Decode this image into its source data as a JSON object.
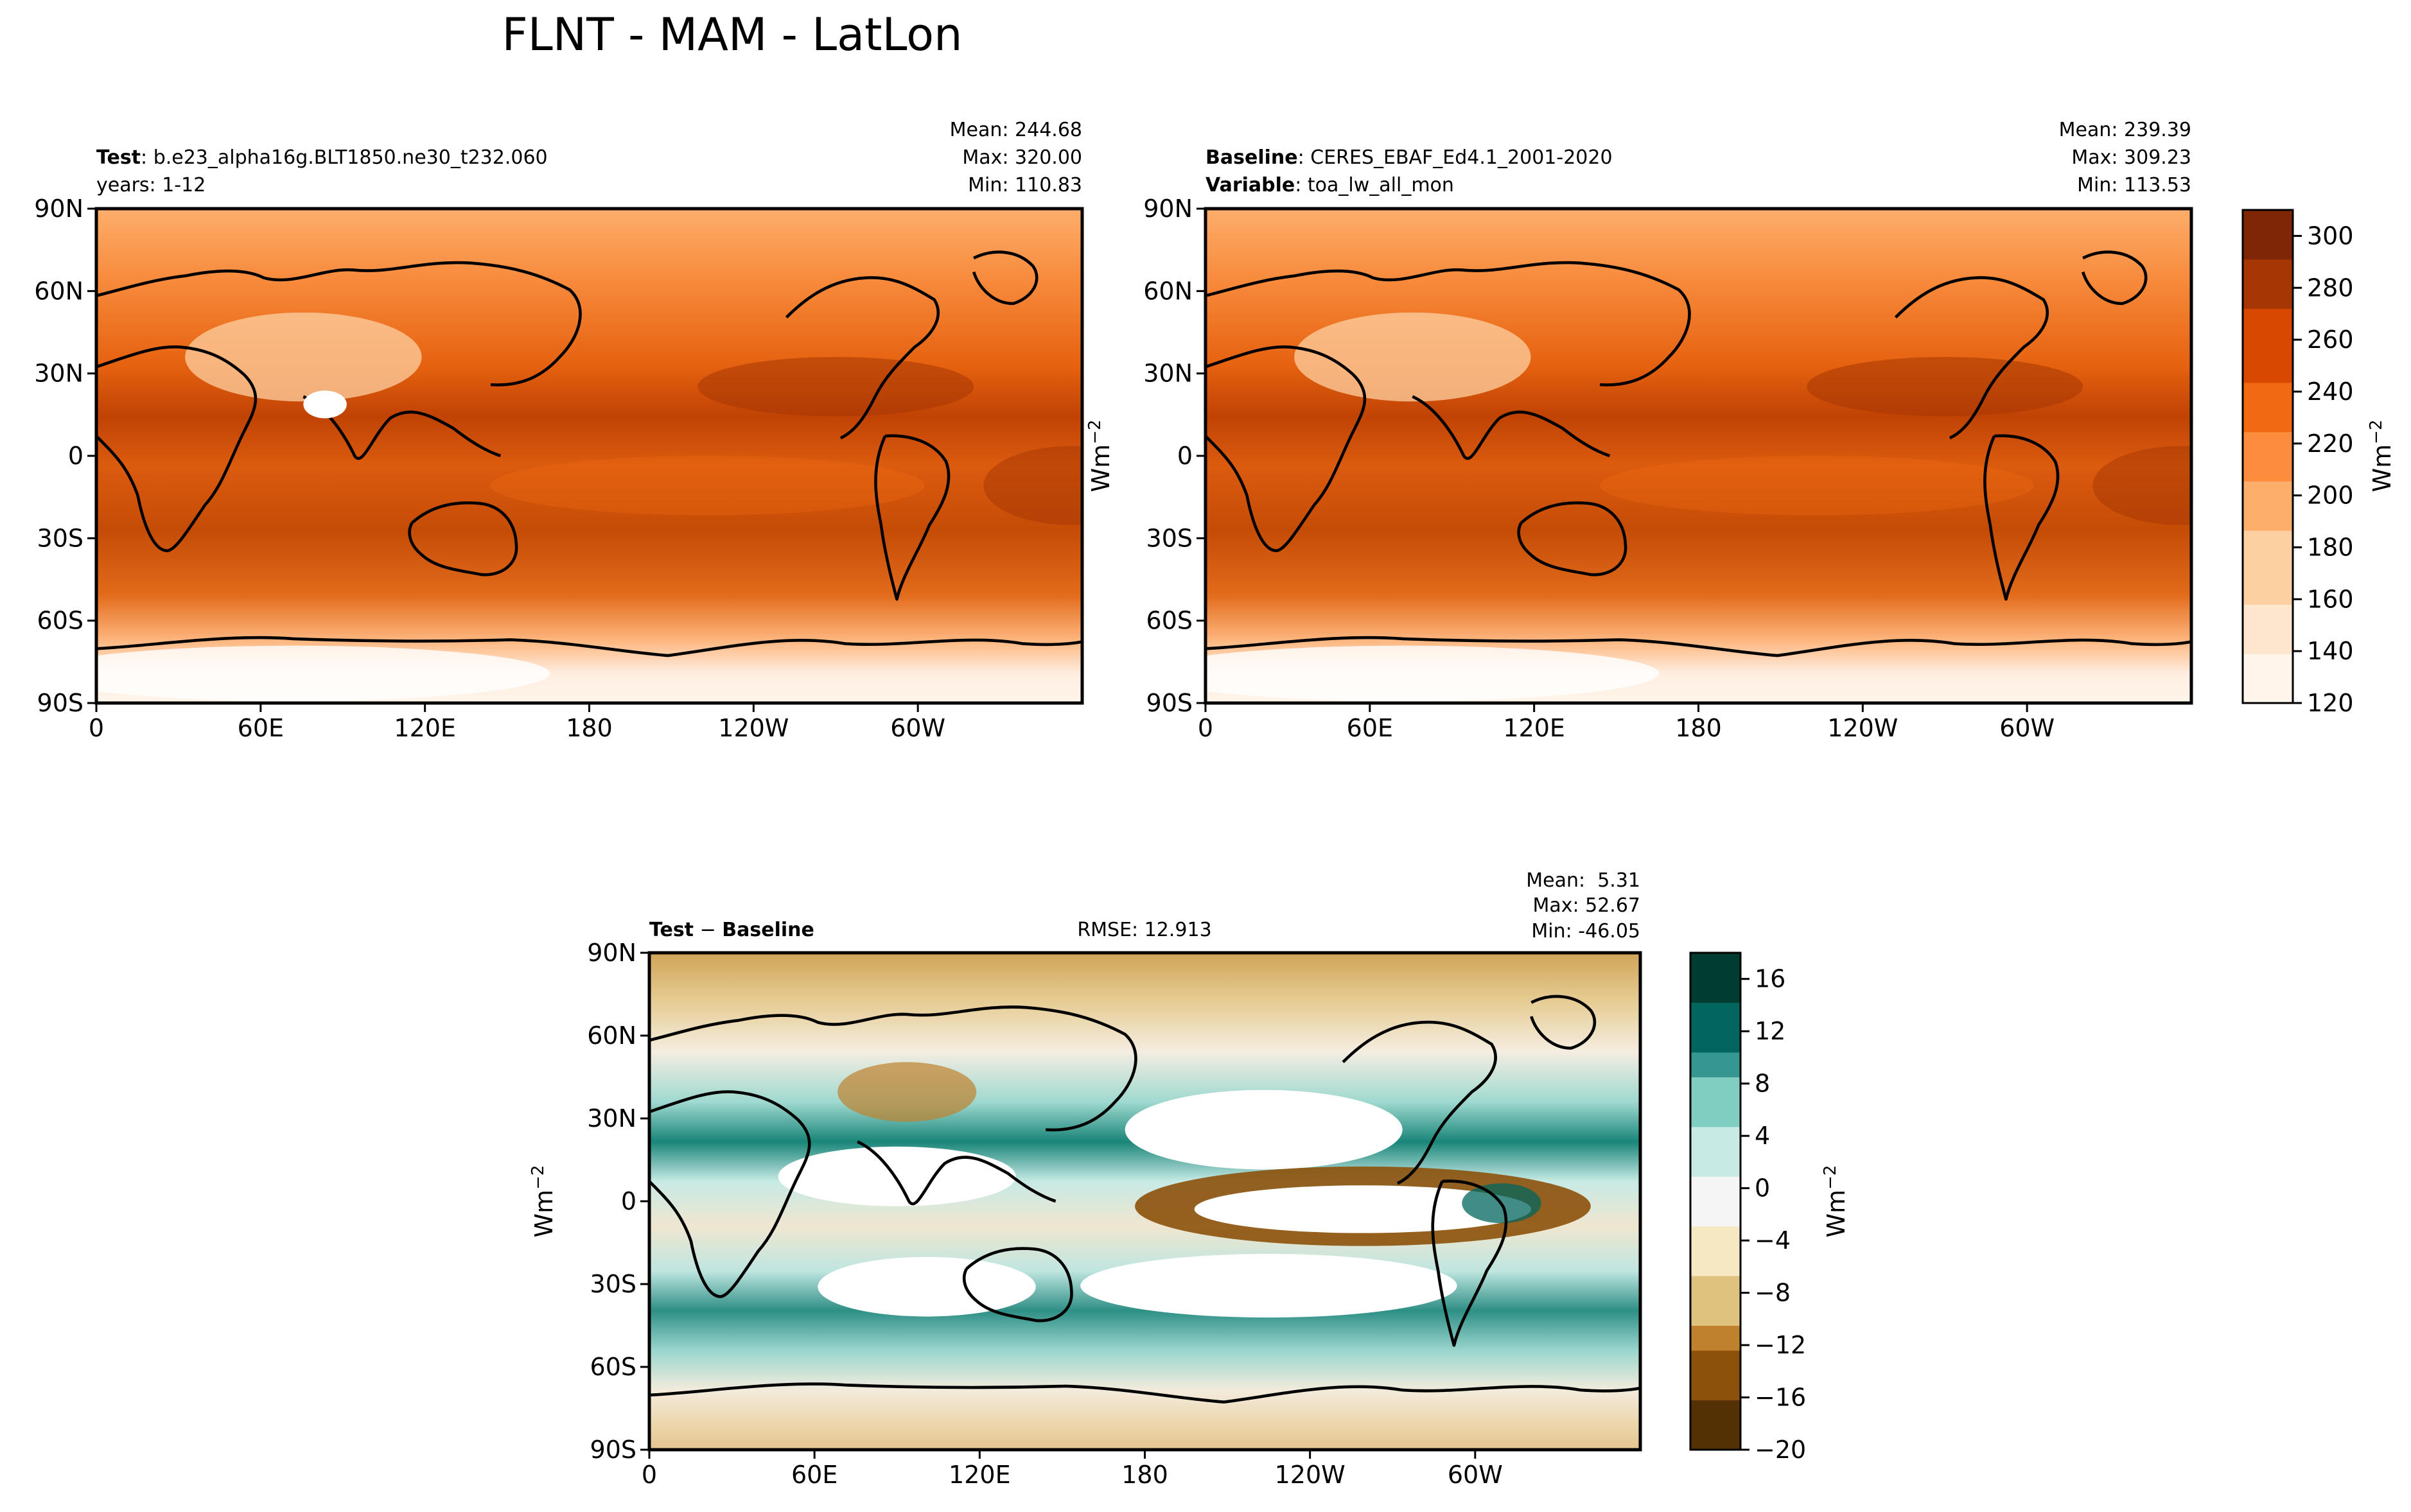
{
  "figure": {
    "title": "FLNT - MAM - LatLon"
  },
  "chart_data": [
    {
      "type": "heatmap",
      "panel": "test",
      "label_bold": "Test",
      "label_text": "b.e23_alpha16g.BLT1850.ne30_t232.060",
      "years_text": "years: 1-12",
      "stats": [
        "Mean: 244.68",
        "Max: 320.00",
        "Min: 110.83"
      ],
      "mean": 244.68,
      "max": 320.0,
      "min": 110.83,
      "xticks": [
        "0",
        "60E",
        "120E",
        "180",
        "120W",
        "60W"
      ],
      "yticks": [
        "90N",
        "60N",
        "30N",
        "0",
        "30S",
        "60S",
        "90S"
      ],
      "xlim": [
        0,
        360
      ],
      "ylim": [
        -90,
        90
      ]
    },
    {
      "type": "heatmap",
      "panel": "baseline",
      "label_bold": "Baseline",
      "label_text": "CERES_EBAF_Ed4.1_2001-2020",
      "variable_bold": "Variable",
      "variable_text": "toa_lw_all_mon",
      "stats": [
        "Mean: 239.39",
        "Max: 309.23",
        "Min: 113.53"
      ],
      "mean": 239.39,
      "max": 309.23,
      "min": 113.53,
      "xticks": [
        "0",
        "60E",
        "120E",
        "180",
        "120W",
        "60W"
      ],
      "yticks": [
        "90N",
        "60N",
        "30N",
        "0",
        "30S",
        "60S",
        "90S"
      ],
      "xlim": [
        0,
        360
      ],
      "ylim": [
        -90,
        90
      ],
      "ylabel": "Wm",
      "ylabel_exp": "−2",
      "colorbar": {
        "label": "Wm",
        "label_exp": "−2",
        "range": [
          120,
          310
        ],
        "ticks": [
          120,
          140,
          160,
          180,
          200,
          220,
          240,
          260,
          280,
          300
        ],
        "tick_labels": [
          "120",
          "140",
          "160",
          "180",
          "200",
          "220",
          "240",
          "260",
          "280",
          "300"
        ],
        "colors": [
          "#fff5eb",
          "#fee6ce",
          "#fdd0a2",
          "#fdae6b",
          "#fd8d3c",
          "#f16913",
          "#d94801",
          "#a63603",
          "#7f2704"
        ]
      }
    },
    {
      "type": "heatmap",
      "panel": "difference",
      "label_bold_1": "Test",
      "label_minus": "−",
      "label_bold_2": "Baseline",
      "rmse_text": "RMSE: 12.913",
      "rmse": 12.913,
      "stats": [
        "Mean:  5.31",
        "Max: 52.67",
        "Min: -46.05"
      ],
      "mean": 5.31,
      "max": 52.67,
      "min": -46.05,
      "xticks": [
        "0",
        "60E",
        "120E",
        "180",
        "120W",
        "60W"
      ],
      "yticks": [
        "90N",
        "60N",
        "30N",
        "0",
        "30S",
        "60S",
        "90S"
      ],
      "xlim": [
        0,
        360
      ],
      "ylim": [
        -90,
        90
      ],
      "ylabel": "Wm",
      "ylabel_exp": "−2",
      "colorbar": {
        "label": "Wm",
        "label_exp": "−2",
        "range": [
          -20,
          18
        ],
        "ticks": [
          -20,
          -16,
          -12,
          -8,
          -4,
          0,
          4,
          8,
          12,
          16
        ],
        "tick_labels": [
          "−20",
          "−16",
          "−12",
          "−8",
          "−4",
          "0",
          "4",
          "8",
          "12",
          "16"
        ],
        "colors": [
          "#543005",
          "#8c510a",
          "#bf812d",
          "#dfc27d",
          "#f6e8c3",
          "#f5f5f5",
          "#c7eae5",
          "#80cdc1",
          "#35978f",
          "#01665e",
          "#003c30"
        ]
      }
    }
  ]
}
